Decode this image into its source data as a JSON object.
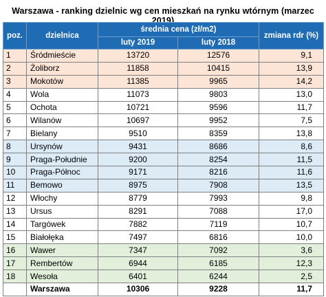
{
  "title": "Warszawa - ranking dzielnic wg cen mieszkań na rynku wtórnym (marzec 2019)",
  "headers": {
    "poz": "poz.",
    "dzielnica": "dzielnica",
    "price_group": "średnia cena (zł/m2)",
    "luty2019": "luty 2019",
    "luty2018": "luty 2018",
    "change": "zmiana rdr (%)"
  },
  "rows": [
    {
      "poz": "1",
      "name": "Śródmieście",
      "p2019": "13720",
      "p2018": "12576",
      "change": "9,1",
      "band": "orange"
    },
    {
      "poz": "2",
      "name": "Żoliborz",
      "p2019": "11858",
      "p2018": "10415",
      "change": "13,9",
      "band": "orange"
    },
    {
      "poz": "3",
      "name": "Mokotów",
      "p2019": "11385",
      "p2018": "9965",
      "change": "14,2",
      "band": "orange"
    },
    {
      "poz": "4",
      "name": "Wola",
      "p2019": "11073",
      "p2018": "9803",
      "change": "13,0",
      "band": "white"
    },
    {
      "poz": "5",
      "name": "Ochota",
      "p2019": "10721",
      "p2018": "9596",
      "change": "11,7",
      "band": "white"
    },
    {
      "poz": "6",
      "name": "Wilanów",
      "p2019": "10697",
      "p2018": "9952",
      "change": "7,5",
      "band": "white"
    },
    {
      "poz": "7",
      "name": "Bielany",
      "p2019": "9510",
      "p2018": "8359",
      "change": "13,8",
      "band": "white"
    },
    {
      "poz": "8",
      "name": "Ursynów",
      "p2019": "9431",
      "p2018": "8686",
      "change": "8,6",
      "band": "blue"
    },
    {
      "poz": "9",
      "name": "Praga-Południe",
      "p2019": "9200",
      "p2018": "8254",
      "change": "11,5",
      "band": "blue"
    },
    {
      "poz": "10",
      "name": "Praga-Północ",
      "p2019": "9171",
      "p2018": "8216",
      "change": "11,6",
      "band": "blue"
    },
    {
      "poz": "11",
      "name": "Bemowo",
      "p2019": "8975",
      "p2018": "7908",
      "change": "13,5",
      "band": "blue"
    },
    {
      "poz": "12",
      "name": "Włochy",
      "p2019": "8779",
      "p2018": "7993",
      "change": "9,8",
      "band": "white"
    },
    {
      "poz": "13",
      "name": "Ursus",
      "p2019": "8291",
      "p2018": "7088",
      "change": "17,0",
      "band": "white"
    },
    {
      "poz": "14",
      "name": "Targówek",
      "p2019": "7882",
      "p2018": "7119",
      "change": "10,7",
      "band": "white"
    },
    {
      "poz": "15",
      "name": "Białołęka",
      "p2019": "7497",
      "p2018": "6816",
      "change": "10,0",
      "band": "white"
    },
    {
      "poz": "16",
      "name": "Wawer",
      "p2019": "7347",
      "p2018": "7092",
      "change": "3,6",
      "band": "green"
    },
    {
      "poz": "17",
      "name": "Rembertów",
      "p2019": "6944",
      "p2018": "6185",
      "change": "12,3",
      "band": "green"
    },
    {
      "poz": "18",
      "name": "Wesoła",
      "p2019": "6401",
      "p2018": "6244",
      "change": "2,5",
      "band": "green"
    }
  ],
  "total": {
    "poz": "",
    "name": "Warszawa",
    "p2019": "10306",
    "p2018": "9228",
    "change": "11,7"
  },
  "colors": {
    "header": "#1f6cb4",
    "orange_band": "#fce4d6",
    "blue_band": "#ddebf7",
    "green_band": "#e2efda"
  }
}
